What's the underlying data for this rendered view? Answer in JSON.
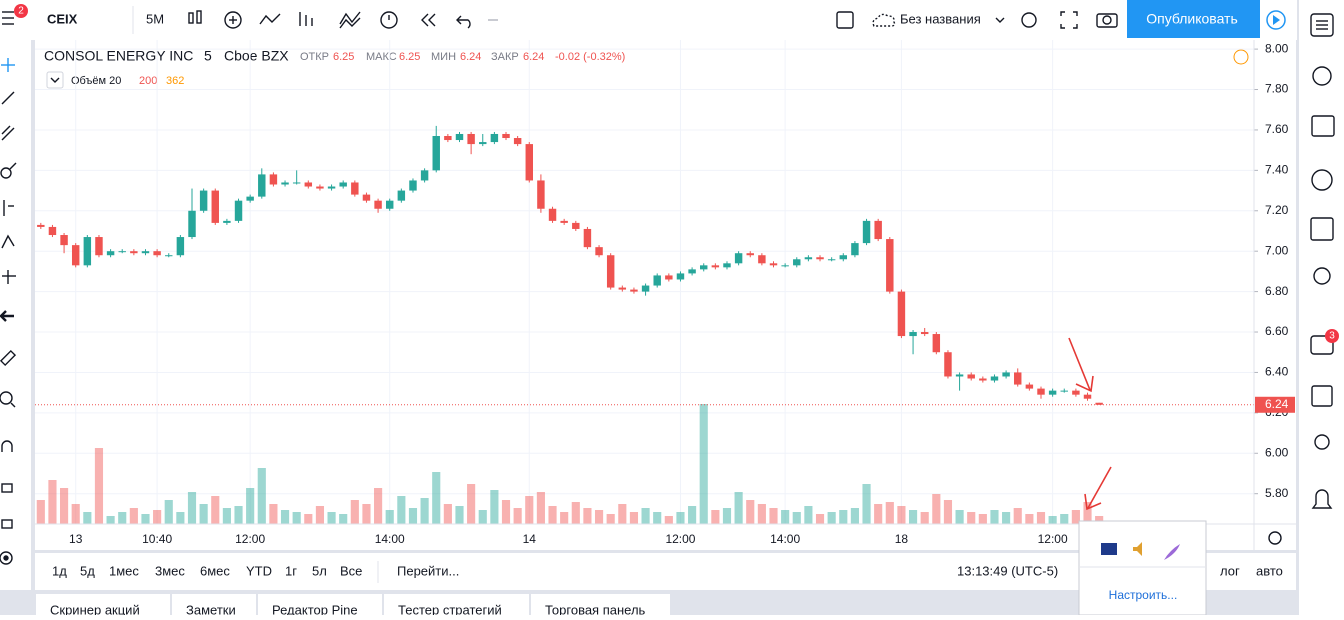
{
  "toolbar": {
    "symbol": "CEIX",
    "interval": "5M",
    "layout_name": "Без названия",
    "publish": "Опубликовать"
  },
  "badges": {
    "menu": "2",
    "chat": "3"
  },
  "legend": {
    "name": "CONSOL ENERGY INC",
    "interval": "5",
    "exchange": "Cboe BZX",
    "open_label": "ОТКР",
    "high_label": "МАКС",
    "low_label": "МИН",
    "close_label": "ЗАКР",
    "change": "-0.02 (-0.32%)",
    "volume_label": "Объём 20",
    "volume_ma": "362"
  },
  "chart_data": {
    "type": "candlestick",
    "up_color": "#26a69a",
    "down_color": "#ef5350",
    "open": [
      7.13,
      7.12,
      7.08,
      7.03,
      6.93,
      7.07,
      6.98,
      7.0,
      7.0,
      6.99,
      7.0,
      6.98,
      6.98,
      7.07,
      7.2,
      7.3,
      7.14,
      7.15,
      7.25,
      7.27,
      7.38,
      7.33,
      7.34,
      7.34,
      7.32,
      7.31,
      7.32,
      7.34,
      7.28,
      7.25,
      7.21,
      7.25,
      7.3,
      7.35,
      7.4,
      7.57,
      7.55,
      7.58,
      7.53,
      7.54,
      7.58,
      7.56,
      7.53,
      7.35,
      7.21,
      7.15,
      7.14,
      7.11,
      7.02,
      6.98,
      6.82,
      6.81,
      6.8,
      6.83,
      6.88,
      6.86,
      6.89,
      6.91,
      6.93,
      6.92,
      6.94,
      6.99,
      6.98,
      6.94,
      6.93,
      6.93,
      6.96,
      6.97,
      6.96,
      6.96,
      6.98,
      7.04,
      7.15,
      7.06,
      6.8,
      6.58,
      6.6,
      6.59,
      6.5,
      6.38,
      6.39,
      6.37,
      6.36,
      6.38,
      6.4,
      6.34,
      6.32,
      6.29,
      6.31,
      6.31,
      6.29,
      6.25
    ],
    "high": [
      7.14,
      7.13,
      7.09,
      7.04,
      7.08,
      7.08,
      7.01,
      7.01,
      7.01,
      7.01,
      7.01,
      6.99,
      7.08,
      7.31,
      7.31,
      7.31,
      7.16,
      7.26,
      7.28,
      7.41,
      7.39,
      7.35,
      7.4,
      7.35,
      7.33,
      7.33,
      7.35,
      7.35,
      7.29,
      7.26,
      7.26,
      7.31,
      7.36,
      7.41,
      7.62,
      7.58,
      7.59,
      7.59,
      7.58,
      7.59,
      7.59,
      7.57,
      7.54,
      7.38,
      7.22,
      7.16,
      7.15,
      7.12,
      7.03,
      6.99,
      6.83,
      6.82,
      6.84,
      6.89,
      6.89,
      6.9,
      6.92,
      6.94,
      6.94,
      6.95,
      7.0,
      7.0,
      6.99,
      6.95,
      6.94,
      6.97,
      6.98,
      6.98,
      6.97,
      6.99,
      7.05,
      7.16,
      7.16,
      7.07,
      6.81,
      6.61,
      6.62,
      6.6,
      6.51,
      6.4,
      6.4,
      6.38,
      6.39,
      6.41,
      6.42,
      6.35,
      6.33,
      6.32,
      6.32,
      6.32,
      6.3,
      6.25
    ],
    "low": [
      7.11,
      7.07,
      6.99,
      6.92,
      6.92,
      6.97,
      6.97,
      6.99,
      6.98,
      6.98,
      6.97,
      6.97,
      6.97,
      7.06,
      7.19,
      7.13,
      7.13,
      7.14,
      7.24,
      7.26,
      7.32,
      7.32,
      7.33,
      7.31,
      7.3,
      7.3,
      7.31,
      7.27,
      7.24,
      7.19,
      7.2,
      7.24,
      7.29,
      7.34,
      7.39,
      7.54,
      7.54,
      7.48,
      7.52,
      7.53,
      7.55,
      7.52,
      7.34,
      7.19,
      7.14,
      7.13,
      7.1,
      7.01,
      6.97,
      6.81,
      6.8,
      6.79,
      6.78,
      6.82,
      6.85,
      6.85,
      6.88,
      6.9,
      6.91,
      6.91,
      6.93,
      6.97,
      6.93,
      6.92,
      6.92,
      6.92,
      6.95,
      6.95,
      6.95,
      6.95,
      6.97,
      7.03,
      7.05,
      6.79,
      6.57,
      6.49,
      6.58,
      6.49,
      6.37,
      6.31,
      6.36,
      6.35,
      6.35,
      6.37,
      6.33,
      6.31,
      6.27,
      6.28,
      6.3,
      6.28,
      6.26,
      6.24
    ],
    "close": [
      7.12,
      7.08,
      7.03,
      6.93,
      7.07,
      6.98,
      7.0,
      7.0,
      6.99,
      7.0,
      6.98,
      6.98,
      7.07,
      7.2,
      7.3,
      7.14,
      7.15,
      7.25,
      7.27,
      7.38,
      7.33,
      7.34,
      7.34,
      7.32,
      7.31,
      7.32,
      7.34,
      7.28,
      7.25,
      7.21,
      7.25,
      7.3,
      7.35,
      7.4,
      7.57,
      7.55,
      7.58,
      7.53,
      7.54,
      7.58,
      7.56,
      7.53,
      7.35,
      7.21,
      7.15,
      7.14,
      7.11,
      7.02,
      6.98,
      6.82,
      6.81,
      6.8,
      6.83,
      6.88,
      6.86,
      6.89,
      6.91,
      6.93,
      6.92,
      6.94,
      6.99,
      6.98,
      6.94,
      6.93,
      6.93,
      6.96,
      6.97,
      6.96,
      6.96,
      6.98,
      7.04,
      7.15,
      7.06,
      6.8,
      6.58,
      6.6,
      6.59,
      6.5,
      6.38,
      6.39,
      6.37,
      6.36,
      6.38,
      6.4,
      6.34,
      6.32,
      6.29,
      6.31,
      6.31,
      6.29,
      6.27,
      6.24
    ],
    "volume": [
      600,
      1100,
      900,
      500,
      300,
      1900,
      200,
      300,
      400,
      250,
      350,
      600,
      300,
      800,
      500,
      700,
      400,
      450,
      900,
      1400,
      500,
      350,
      300,
      250,
      450,
      300,
      250,
      600,
      500,
      900,
      350,
      700,
      400,
      650,
      1300,
      500,
      450,
      1000,
      350,
      850,
      600,
      400,
      700,
      800,
      450,
      300,
      550,
      400,
      350,
      250,
      500,
      300,
      400,
      300,
      200,
      300,
      450,
      3000,
      350,
      400,
      800,
      600,
      500,
      400,
      350,
      300,
      450,
      250,
      300,
      350,
      400,
      1000,
      500,
      550,
      450,
      350,
      300,
      750,
      600,
      350,
      300,
      250,
      350,
      300,
      400,
      250,
      300,
      200,
      250,
      350,
      550,
      200
    ],
    "volume_lim": [
      0,
      4000
    ],
    "ylim": [
      5.65,
      8.05
    ],
    "yticks": [
      {
        "value": 5.8,
        "label": "5.80"
      },
      {
        "value": 6.0,
        "label": "6.00"
      },
      {
        "value": 6.2,
        "label": "6.20"
      },
      {
        "value": 6.4,
        "label": "6.40"
      },
      {
        "value": 6.6,
        "label": "6.60"
      },
      {
        "value": 6.8,
        "label": "6.80"
      },
      {
        "value": 7.0,
        "label": "7.00"
      },
      {
        "value": 7.2,
        "label": "7.20"
      },
      {
        "value": 7.4,
        "label": "7.40"
      },
      {
        "value": 7.6,
        "label": "7.60"
      },
      {
        "value": 7.8,
        "label": "7.80"
      },
      {
        "value": 8.0,
        "label": "8.00"
      }
    ],
    "time_labels": [
      "13",
      "10:40",
      "12:00",
      "14:00",
      "14",
      "12:00",
      "14:00",
      "18",
      "12:00"
    ],
    "grid": true
  },
  "bottom": {
    "ranges": [
      "1д",
      "5д",
      "1мес",
      "3мес",
      "6мес",
      "YTD",
      "1г",
      "5л",
      "Все"
    ],
    "goto": "Перейти...",
    "clock": "13:13:49 (UTC-5)",
    "log": "лог",
    "auto": "авто"
  },
  "tabs": [
    "Скринер акций",
    "Заметки",
    "Редактор Pine",
    "Тестер стратегий",
    "Торговая панель"
  ],
  "popup": {
    "configure": "Настроить..."
  }
}
